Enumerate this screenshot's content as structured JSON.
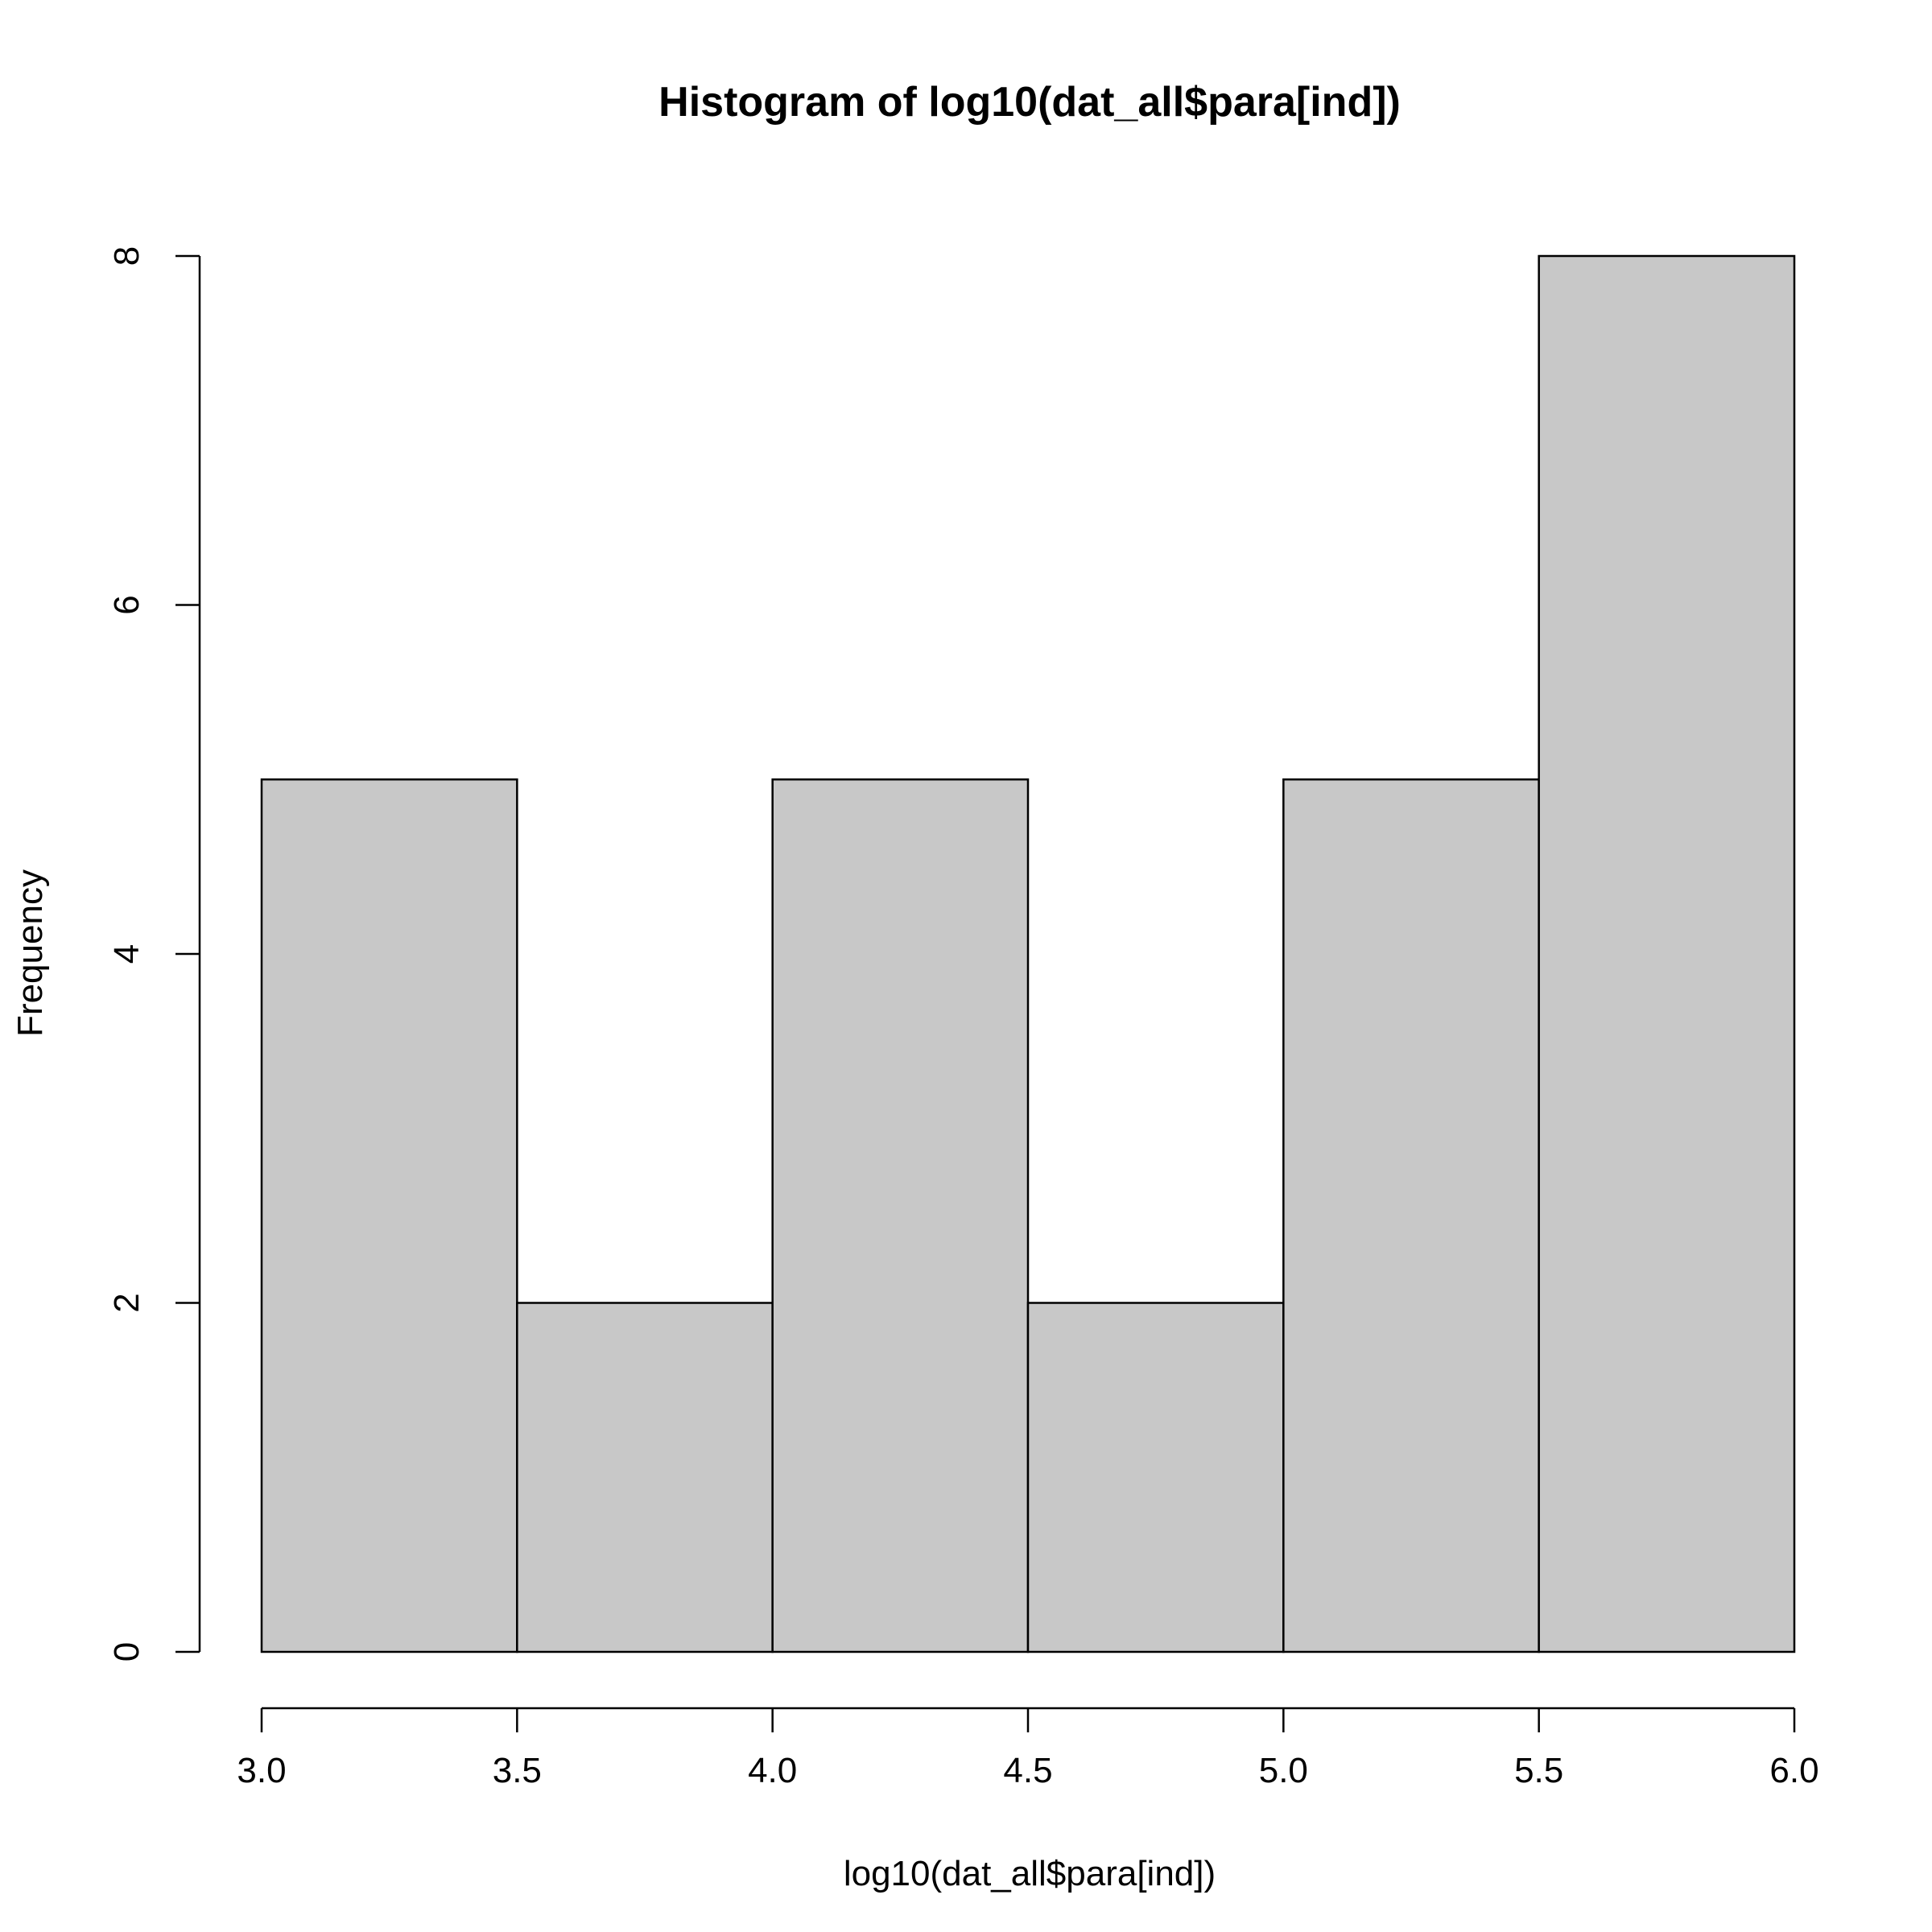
{
  "chart_data": {
    "type": "bar",
    "title": "Histogram of log10(dat_all$para[ind])",
    "xlabel": "log10(dat_all$para[ind])",
    "ylabel": "Frequency",
    "bins": [
      {
        "from": 3.0,
        "to": 3.5,
        "count": 5
      },
      {
        "from": 3.5,
        "to": 4.0,
        "count": 2
      },
      {
        "from": 4.0,
        "to": 4.5,
        "count": 5
      },
      {
        "from": 4.5,
        "to": 5.0,
        "count": 2
      },
      {
        "from": 5.0,
        "to": 5.5,
        "count": 5
      },
      {
        "from": 5.5,
        "to": 6.0,
        "count": 8
      }
    ],
    "xlim": [
      3.0,
      6.0
    ],
    "ylim": [
      0,
      8
    ],
    "x_ticks": [
      "3.0",
      "3.5",
      "4.0",
      "4.5",
      "5.0",
      "5.5",
      "6.0"
    ],
    "y_ticks": [
      "0",
      "2",
      "4",
      "6",
      "8"
    ],
    "grid": false,
    "bar_fill": "#c8c8c8",
    "bar_stroke": "#000000"
  }
}
